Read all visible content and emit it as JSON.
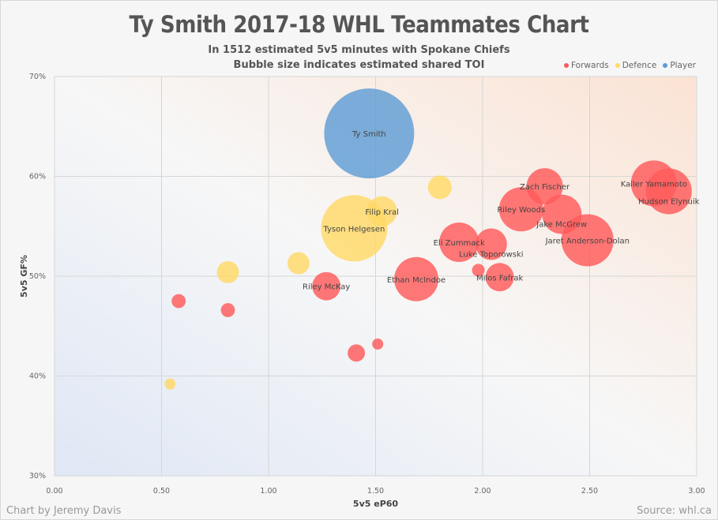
{
  "title": "Ty Smith 2017-18 WHL Teammates Chart",
  "subtitle1": "In 1512 estimated 5v5 minutes with Spokane Chiefs",
  "subtitle2": "Bubble size indicates estimated shared TOI",
  "credit_left": "Chart by Jeremy Davis",
  "credit_right": "Source: whl.ca",
  "chart_data": {
    "type": "scatter",
    "xlabel": "5v5 eP60",
    "ylabel": "5v5 GF%",
    "xlim": [
      0,
      3
    ],
    "ylim": [
      30,
      70
    ],
    "xticks": [
      "0.00",
      "0.50",
      "1.00",
      "1.50",
      "2.00",
      "2.50",
      "3.00"
    ],
    "yticks": [
      "30%",
      "40%",
      "50%",
      "60%",
      "70%"
    ],
    "grid": true,
    "legend_position": "top-right",
    "colors": {
      "Forwards": "#ff5a5a",
      "Defence": "#ffd966",
      "Player": "#5b9bd5"
    },
    "legend": [
      "Forwards",
      "Defence",
      "Player"
    ],
    "points": [
      {
        "name": "Ty Smith",
        "group": "Player",
        "x": 1.47,
        "y": 64.3,
        "toi": 1512
      },
      {
        "name": "Tyson Helgesen",
        "group": "Defence",
        "x": 1.4,
        "y": 54.8,
        "toi": 821
      },
      {
        "name": "Filip Kral",
        "group": "Defence",
        "x": 1.53,
        "y": 56.5,
        "toi": 168
      },
      {
        "name": "",
        "group": "Defence",
        "x": 1.8,
        "y": 58.9,
        "toi": 105
      },
      {
        "name": "",
        "group": "Defence",
        "x": 1.14,
        "y": 51.3,
        "toi": 91
      },
      {
        "name": "",
        "group": "Defence",
        "x": 0.81,
        "y": 50.4,
        "toi": 91
      },
      {
        "name": "",
        "group": "Defence",
        "x": 0.54,
        "y": 39.2,
        "toi": 23
      },
      {
        "name": "Riley McKay",
        "group": "Forwards",
        "x": 1.27,
        "y": 49.0,
        "toi": 150
      },
      {
        "name": "Ethan McIndoe",
        "group": "Forwards",
        "x": 1.69,
        "y": 49.7,
        "toi": 365
      },
      {
        "name": "Eli Zummack",
        "group": "Forwards",
        "x": 1.89,
        "y": 53.4,
        "toi": 291
      },
      {
        "name": "Luke Toporowski",
        "group": "Forwards",
        "x": 2.04,
        "y": 53.2,
        "toi": 186
      },
      {
        "name": "",
        "group": "Forwards",
        "x": 1.98,
        "y": 50.6,
        "toi": 30
      },
      {
        "name": "Milos Fafrak",
        "group": "Forwards",
        "x": 2.08,
        "y": 49.9,
        "toi": 150
      },
      {
        "name": "Riley Woods",
        "group": "Forwards",
        "x": 2.18,
        "y": 56.7,
        "toi": 365
      },
      {
        "name": "Zach Fischer",
        "group": "Forwards",
        "x": 2.29,
        "y": 59.0,
        "toi": 247
      },
      {
        "name": "Jake McGrew",
        "group": "Forwards",
        "x": 2.37,
        "y": 56.2,
        "toi": 291
      },
      {
        "name": "Jaret Anderson-Dolan",
        "group": "Forwards",
        "x": 2.49,
        "y": 53.6,
        "toi": 507
      },
      {
        "name": "Kailer Yamamoto",
        "group": "Forwards",
        "x": 2.8,
        "y": 59.3,
        "toi": 392
      },
      {
        "name": "Hudson Elynuik",
        "group": "Forwards",
        "x": 2.87,
        "y": 58.5,
        "toi": 392
      },
      {
        "name": "",
        "group": "Forwards",
        "x": 0.58,
        "y": 47.5,
        "toi": 37
      },
      {
        "name": "",
        "group": "Forwards",
        "x": 0.81,
        "y": 46.6,
        "toi": 37
      },
      {
        "name": "",
        "group": "Forwards",
        "x": 1.41,
        "y": 42.3,
        "toi": 56
      },
      {
        "name": "",
        "group": "Forwards",
        "x": 1.51,
        "y": 43.2,
        "toi": 23
      }
    ]
  }
}
